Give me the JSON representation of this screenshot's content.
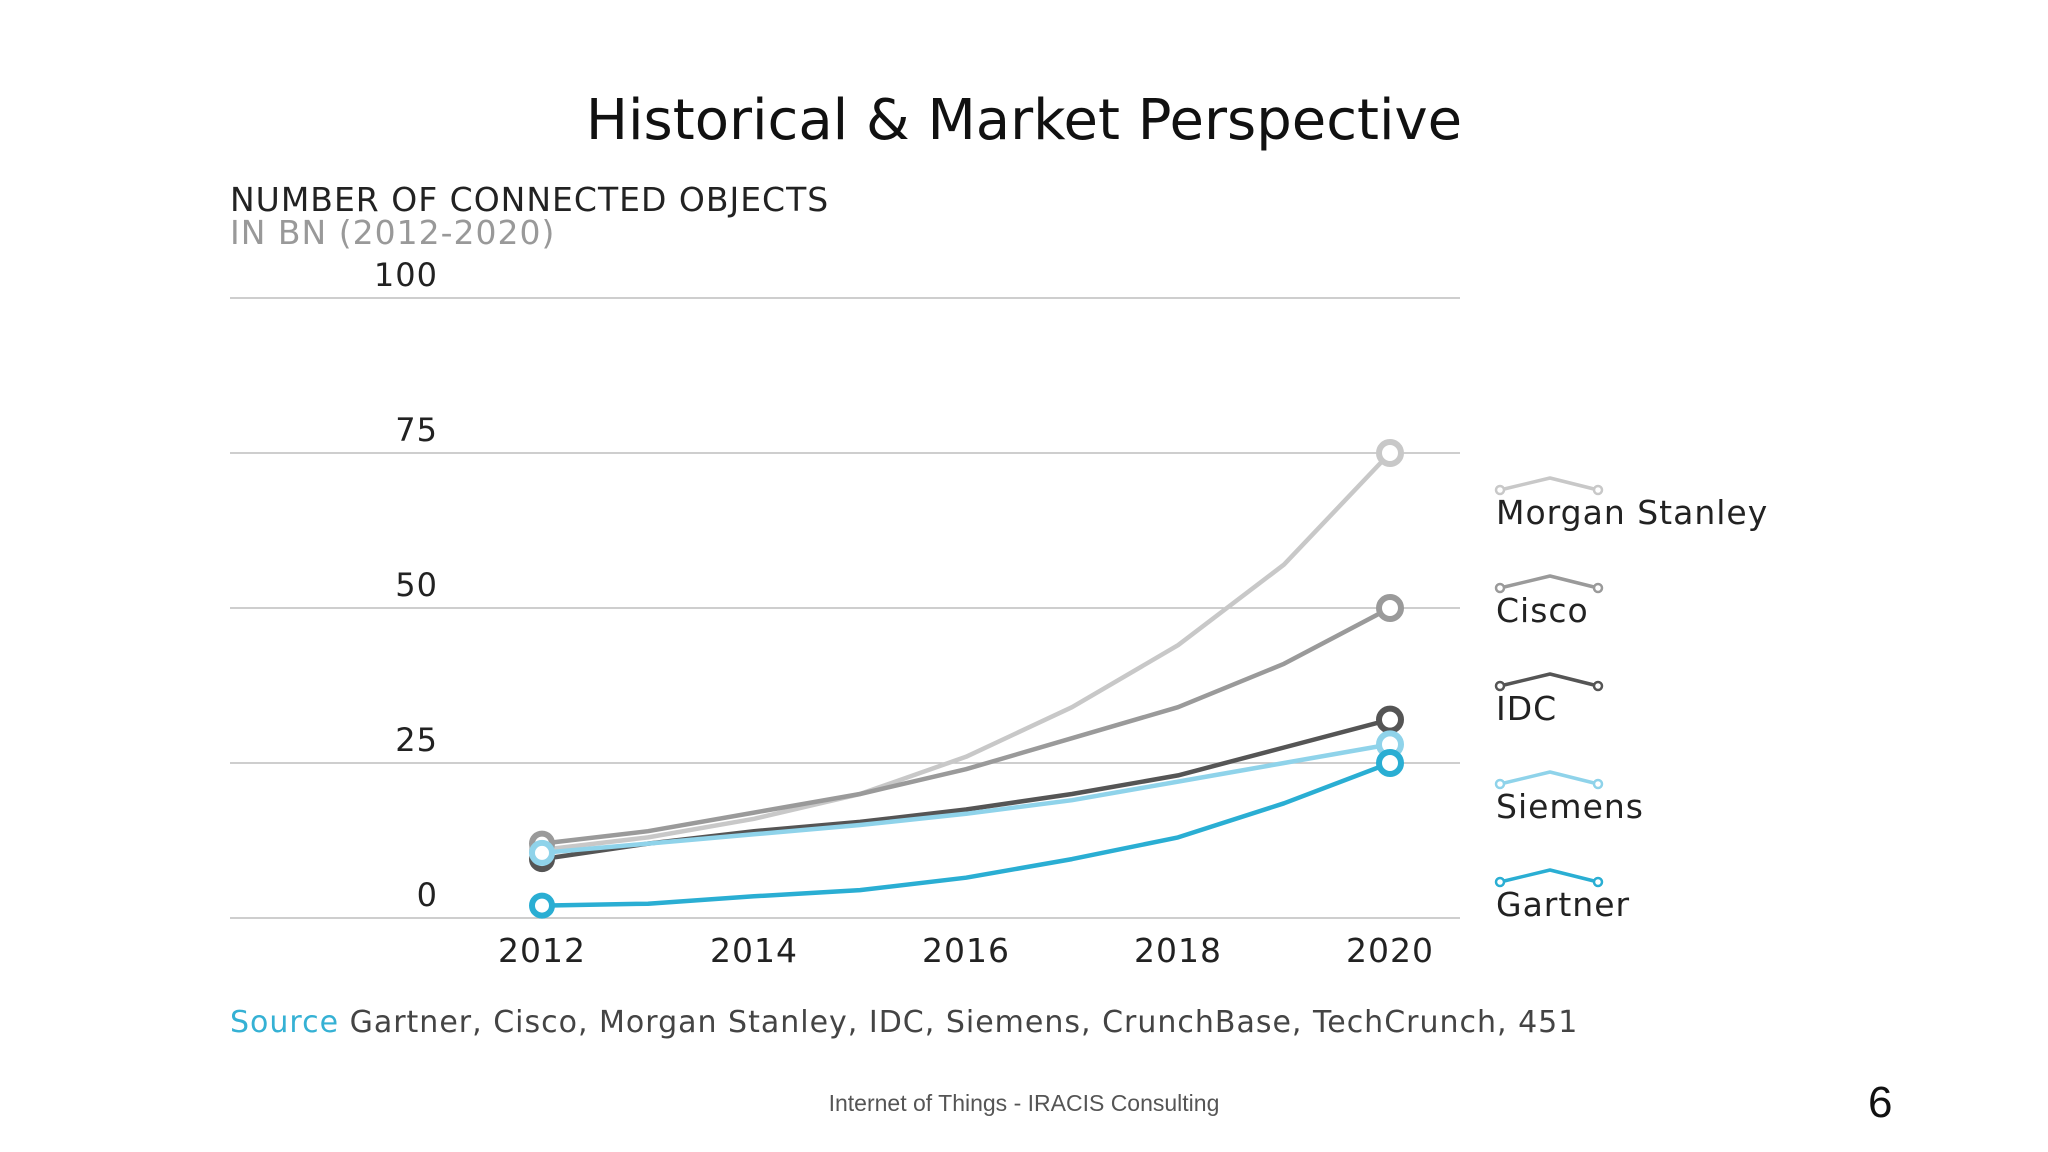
{
  "slide": {
    "title": "Historical & Market Perspective",
    "footer": "Internet of Things - IRACIS Consulting",
    "page_number": "6"
  },
  "source": {
    "label": "Source",
    "text": " Gartner, Cisco, Morgan Stanley, IDC, Siemens, CrunchBase, TechCrunch, 451"
  },
  "chart_data": {
    "type": "line",
    "title": "NUMBER OF CONNECTED OBJECTS",
    "subtitle": "IN BN (2012-2020)",
    "xlabel": "",
    "ylabel": "",
    "x": [
      2012,
      2013,
      2014,
      2015,
      2016,
      2017,
      2018,
      2019,
      2020
    ],
    "x_ticks": [
      2012,
      2014,
      2016,
      2018,
      2020
    ],
    "y_ticks": [
      0,
      25,
      50,
      75,
      100
    ],
    "xlim": [
      2012,
      2020
    ],
    "ylim": [
      0,
      100
    ],
    "grid": "horizontal",
    "legend_position": "right",
    "series": [
      {
        "name": "Morgan Stanley",
        "color": "#c8c8c8",
        "values": [
          11,
          13,
          16,
          20,
          26,
          34,
          44,
          57,
          75
        ]
      },
      {
        "name": "Cisco",
        "color": "#9a9a9a",
        "values": [
          12,
          14,
          17,
          20,
          24,
          29,
          34,
          41,
          50
        ]
      },
      {
        "name": "IDC",
        "color": "#555555",
        "values": [
          9.5,
          12,
          14,
          15.5,
          17.5,
          20,
          23,
          27.5,
          32
        ]
      },
      {
        "name": "Siemens",
        "color": "#8fd3ea",
        "values": [
          10.5,
          12,
          13.5,
          15,
          16.8,
          19,
          22,
          25,
          28
        ]
      },
      {
        "name": "Gartner",
        "color": "#2aaed3",
        "values": [
          2,
          2.3,
          3.5,
          4.5,
          6.5,
          9.5,
          13,
          18.5,
          25
        ]
      }
    ]
  }
}
